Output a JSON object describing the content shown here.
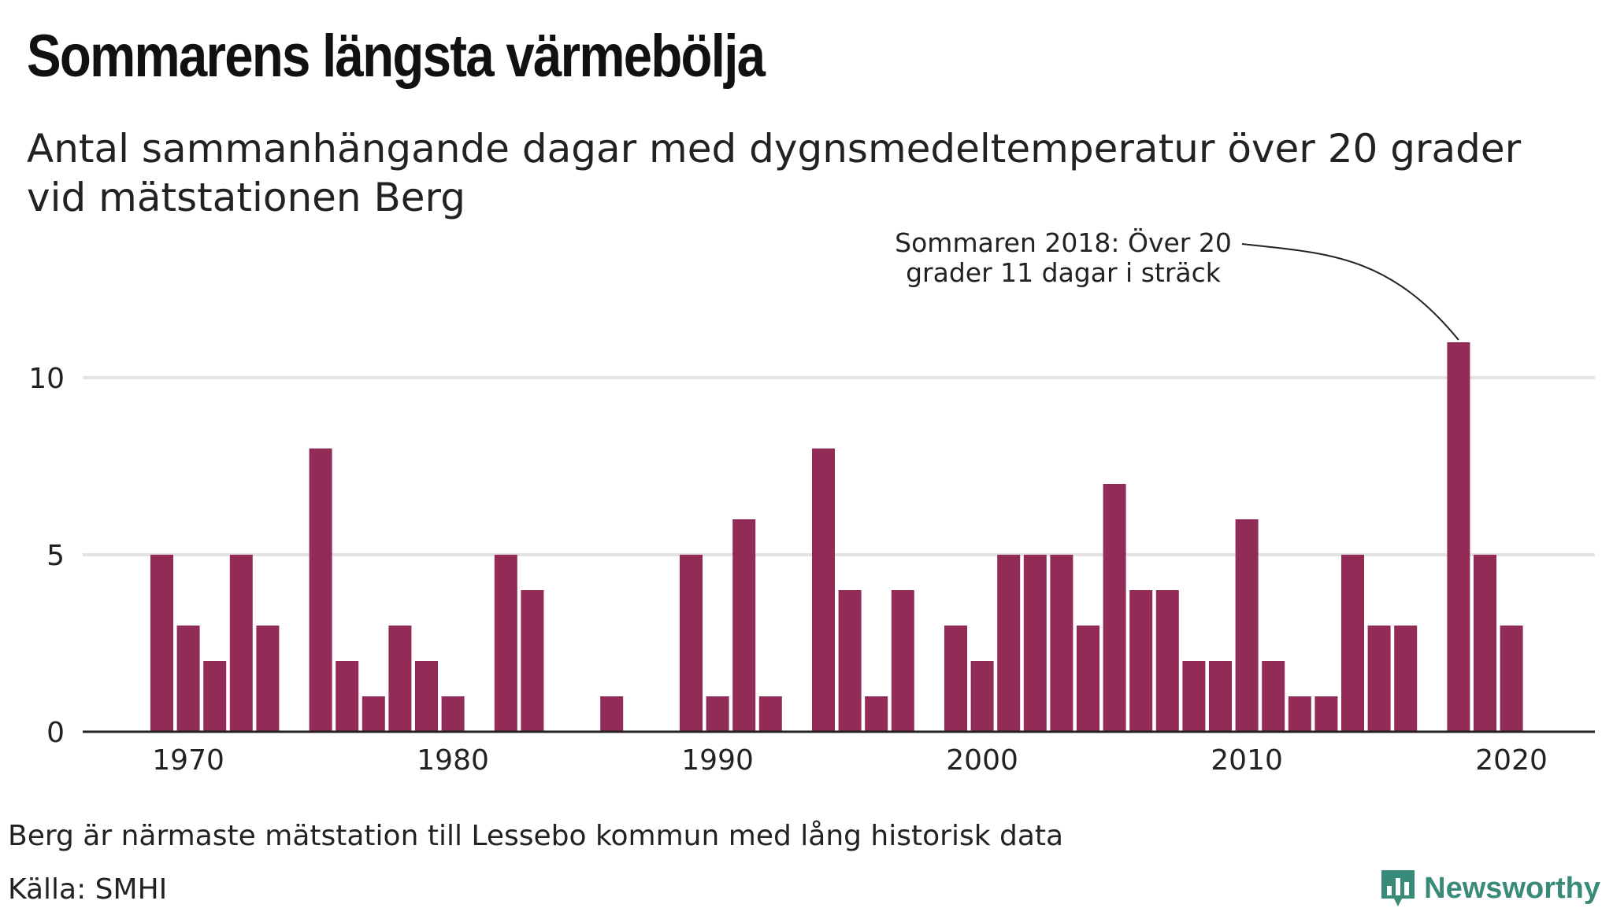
{
  "title": "Sommarens längsta värmebölja",
  "subtitle": "Antal sammanhängande dagar med dygnsmedeltemperatur över 20 grader vid mätstationen Berg",
  "note": "Berg är närmaste mätstation till Lessebo kommun med lång historisk data",
  "source": "Källa: SMHI",
  "brand": {
    "name": "Newsworthy",
    "icon": "bar-chart-logo-icon"
  },
  "colors": {
    "bar": "#922c57",
    "grid": "#e3e3e3",
    "axis": "#222222",
    "brand": "#3a8a7a"
  },
  "chart_data": {
    "type": "bar",
    "title": "Sommarens längsta värmebölja",
    "subtitle": "Antal sammanhängande dagar med dygnsmedeltemperatur över 20 grader vid mätstationen Berg",
    "x": [
      1969,
      1970,
      1971,
      1972,
      1973,
      1974,
      1975,
      1976,
      1977,
      1978,
      1979,
      1980,
      1981,
      1982,
      1983,
      1984,
      1985,
      1986,
      1987,
      1988,
      1989,
      1990,
      1991,
      1992,
      1993,
      1994,
      1995,
      1996,
      1997,
      1998,
      1999,
      2000,
      2001,
      2002,
      2003,
      2004,
      2005,
      2006,
      2007,
      2008,
      2009,
      2010,
      2011,
      2012,
      2013,
      2014,
      2015,
      2016,
      2017,
      2018,
      2019,
      2020
    ],
    "values": [
      5,
      3,
      2,
      5,
      3,
      0,
      8,
      2,
      1,
      3,
      2,
      1,
      0,
      5,
      4,
      0,
      0,
      1,
      0,
      0,
      5,
      1,
      6,
      1,
      0,
      8,
      4,
      1,
      4,
      0,
      3,
      2,
      5,
      5,
      5,
      3,
      7,
      4,
      4,
      2,
      2,
      6,
      2,
      1,
      1,
      5,
      3,
      3,
      0,
      11,
      5,
      3
    ],
    "xticks": [
      "1970",
      "1980",
      "1990",
      "2000",
      "2010",
      "2020"
    ],
    "yticks": [
      "0",
      "5",
      "10"
    ],
    "ylim": [
      0,
      12
    ],
    "grid": true,
    "annotation": {
      "x": 2018,
      "text_line1": "Sommaren 2018: Över 20",
      "text_line2": "grader 11 dagar i sträck"
    }
  }
}
